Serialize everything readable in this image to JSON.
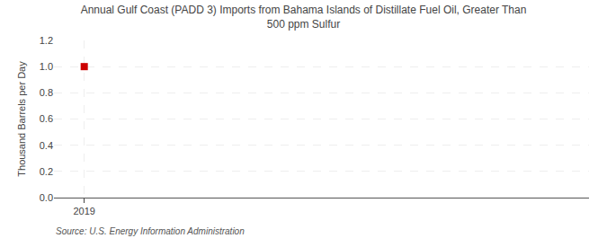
{
  "chart_data": {
    "type": "scatter",
    "title": "Annual Gulf Coast (PADD 3) Imports from Bahama Islands of Distillate Fuel Oil, Greater Than\n500 ppm Sulfur",
    "ylabel": "Thousand Barrels per Day",
    "source": "Source: U.S. Energy Information Administration",
    "x": [
      2019
    ],
    "values": [
      1.0
    ],
    "color": "#cc0000",
    "marker": "square",
    "xlim": [
      2018.7,
      2024.0
    ],
    "xticks": [
      2019
    ],
    "ylim": [
      0.0,
      1.2
    ],
    "yticks": [
      {
        "value": 0.0,
        "label": "0.0"
      },
      0.2,
      0.4,
      0.6,
      0.8,
      {
        "value": 1.0,
        "label": "1.0"
      },
      1.2
    ],
    "grid": true
  }
}
